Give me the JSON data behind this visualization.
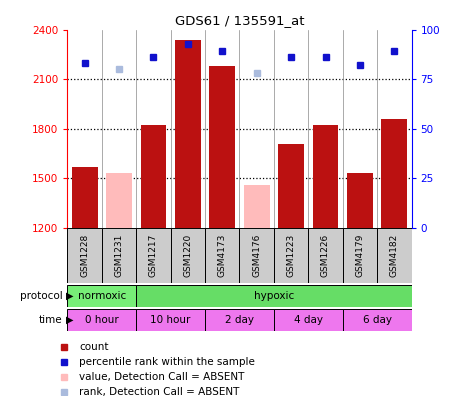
{
  "title": "GDS61 / 135591_at",
  "samples": [
    "GSM1228",
    "GSM1231",
    "GSM1217",
    "GSM1220",
    "GSM4173",
    "GSM4176",
    "GSM1223",
    "GSM1226",
    "GSM4179",
    "GSM4182"
  ],
  "count_values": [
    1570,
    null,
    1820,
    2340,
    2180,
    null,
    1710,
    1820,
    1530,
    1860
  ],
  "absent_values": [
    null,
    1530,
    null,
    null,
    null,
    1460,
    null,
    null,
    null,
    null
  ],
  "rank_values": [
    83,
    null,
    86,
    93,
    89,
    null,
    86,
    86,
    82,
    89
  ],
  "absent_rank_values": [
    null,
    80,
    null,
    null,
    null,
    78,
    null,
    null,
    null,
    null
  ],
  "ylim_left": [
    1200,
    2400
  ],
  "ylim_right": [
    0,
    100
  ],
  "yticks_left": [
    1200,
    1500,
    1800,
    2100,
    2400
  ],
  "yticks_right": [
    0,
    25,
    50,
    75,
    100
  ],
  "bar_color": "#bb1111",
  "absent_bar_color": "#ffbbbb",
  "rank_color": "#1111cc",
  "absent_rank_color": "#aabbdd",
  "plot_bg": "#ffffff",
  "label_box_color": "#cccccc",
  "protocol_norm_color": "#77ee77",
  "protocol_hyp_color": "#66dd66",
  "time_color": "#ee77ee",
  "legend_items": [
    {
      "label": "count",
      "color": "#bb1111"
    },
    {
      "label": "percentile rank within the sample",
      "color": "#1111cc"
    },
    {
      "label": "value, Detection Call = ABSENT",
      "color": "#ffbbbb"
    },
    {
      "label": "rank, Detection Call = ABSENT",
      "color": "#aabbdd"
    }
  ]
}
